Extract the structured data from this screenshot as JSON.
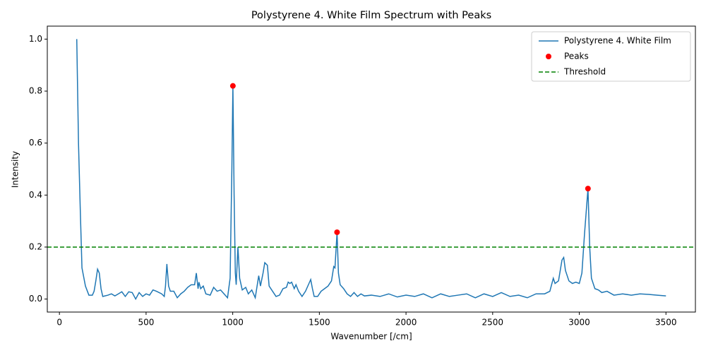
{
  "chart_data": {
    "type": "line",
    "title": "Polystyrene 4. White Film Spectrum with Peaks",
    "xlabel": "Wavenumber [/cm]",
    "ylabel": "Intensity",
    "xlim": [
      -70,
      3670
    ],
    "ylim": [
      -0.05,
      1.05
    ],
    "xticks": [
      0,
      500,
      1000,
      1500,
      2000,
      2500,
      3000,
      3500
    ],
    "yticks": [
      {
        "value": 0,
        "label": "0.0"
      },
      {
        "value": 0.2,
        "label": "0.2"
      },
      {
        "value": 0.4,
        "label": "0.4"
      },
      {
        "value": 0.6,
        "label": "0.6"
      },
      {
        "value": 0.8,
        "label": "0.8"
      },
      {
        "value": 1,
        "label": "1.0"
      }
    ],
    "legend": "upper right",
    "series": [
      {
        "name": "Polystyrene 4. White Film",
        "color": "#1f77b4",
        "type": "line",
        "x": [
          100,
          110,
          120,
          130,
          150,
          170,
          190,
          200,
          210,
          220,
          230,
          240,
          250,
          280,
          300,
          320,
          340,
          360,
          380,
          400,
          420,
          440,
          460,
          480,
          500,
          520,
          540,
          560,
          590,
          605,
          612,
          620,
          630,
          640,
          660,
          680,
          700,
          720,
          740,
          760,
          780,
          790,
          800,
          805,
          815,
          830,
          845,
          870,
          890,
          910,
          930,
          950,
          970,
          985,
          995,
          1001,
          1008,
          1015,
          1020,
          1030,
          1040,
          1055,
          1075,
          1090,
          1110,
          1130,
          1150,
          1160,
          1175,
          1185,
          1200,
          1210,
          1230,
          1250,
          1270,
          1290,
          1310,
          1320,
          1330,
          1340,
          1355,
          1365,
          1380,
          1400,
          1420,
          1440,
          1450,
          1460,
          1470,
          1490,
          1510,
          1530,
          1550,
          1570,
          1583,
          1590,
          1602,
          1610,
          1620,
          1640,
          1660,
          1680,
          1700,
          1720,
          1740,
          1760,
          1800,
          1850,
          1900,
          1950,
          2000,
          2050,
          2100,
          2150,
          2200,
          2250,
          2300,
          2350,
          2400,
          2450,
          2500,
          2550,
          2600,
          2650,
          2700,
          2750,
          2800,
          2830,
          2850,
          2860,
          2880,
          2900,
          2910,
          2920,
          2940,
          2960,
          2980,
          3000,
          3015,
          3030,
          3050,
          3060,
          3070,
          3090,
          3110,
          3130,
          3160,
          3200,
          3250,
          3300,
          3350,
          3400,
          3450,
          3500
        ],
        "values": [
          1.0,
          0.6,
          0.35,
          0.12,
          0.05,
          0.015,
          0.015,
          0.03,
          0.07,
          0.115,
          0.1,
          0.04,
          0.01,
          0.015,
          0.02,
          0.012,
          0.02,
          0.028,
          0.01,
          0.028,
          0.025,
          0.0,
          0.025,
          0.01,
          0.02,
          0.015,
          0.035,
          0.03,
          0.02,
          0.01,
          0.05,
          0.135,
          0.05,
          0.03,
          0.03,
          0.005,
          0.02,
          0.03,
          0.045,
          0.055,
          0.055,
          0.1,
          0.04,
          0.065,
          0.04,
          0.05,
          0.02,
          0.015,
          0.045,
          0.03,
          0.035,
          0.02,
          0.005,
          0.08,
          0.5,
          0.82,
          0.4,
          0.1,
          0.055,
          0.2,
          0.08,
          0.035,
          0.045,
          0.02,
          0.035,
          0.005,
          0.09,
          0.05,
          0.1,
          0.14,
          0.13,
          0.05,
          0.03,
          0.01,
          0.015,
          0.04,
          0.045,
          0.065,
          0.06,
          0.065,
          0.04,
          0.055,
          0.03,
          0.01,
          0.03,
          0.06,
          0.075,
          0.04,
          0.01,
          0.01,
          0.03,
          0.04,
          0.05,
          0.07,
          0.125,
          0.12,
          0.257,
          0.1,
          0.055,
          0.04,
          0.02,
          0.01,
          0.025,
          0.01,
          0.02,
          0.012,
          0.015,
          0.01,
          0.02,
          0.008,
          0.015,
          0.01,
          0.02,
          0.005,
          0.02,
          0.01,
          0.015,
          0.02,
          0.005,
          0.02,
          0.01,
          0.025,
          0.01,
          0.015,
          0.005,
          0.02,
          0.02,
          0.03,
          0.08,
          0.06,
          0.07,
          0.15,
          0.16,
          0.11,
          0.07,
          0.06,
          0.065,
          0.06,
          0.1,
          0.25,
          0.425,
          0.2,
          0.08,
          0.04,
          0.035,
          0.025,
          0.03,
          0.015,
          0.02,
          0.015,
          0.02,
          0.018,
          0.015,
          0.012
        ]
      },
      {
        "name": "Peaks",
        "color": "#ff0000",
        "type": "scatter",
        "x": [
          1001,
          1602,
          3050
        ],
        "values": [
          0.82,
          0.257,
          0.425
        ]
      },
      {
        "name": "Threshold",
        "color": "#008000",
        "type": "hline",
        "values": [
          0.2
        ]
      }
    ]
  }
}
